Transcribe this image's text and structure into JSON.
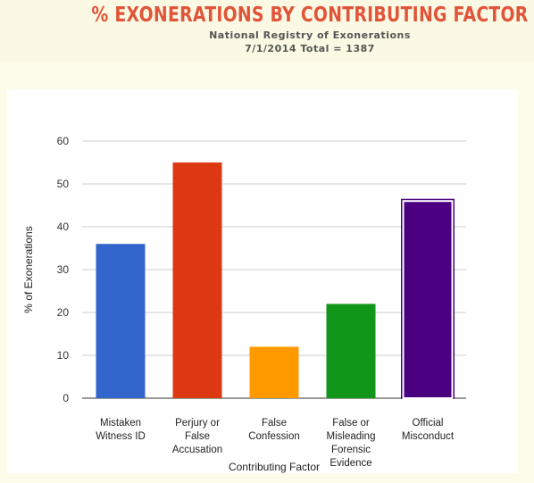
{
  "header": {
    "title": "% EXONERATIONS BY CONTRIBUTING FACTOR",
    "subtitle": "National Registry of Exonerations",
    "subtitle2": "7/1/2014 Total = 1387"
  },
  "chart_data": {
    "type": "bar",
    "categories": [
      [
        "Mistaken",
        "Witness ID"
      ],
      [
        "Perjury or",
        "False",
        "Accusation"
      ],
      [
        "False",
        "Confession"
      ],
      [
        "False or",
        "Misleading",
        "Forensic",
        "Evidence"
      ],
      [
        "Official",
        "Misconduct"
      ]
    ],
    "values": [
      36,
      55,
      12,
      22,
      46
    ],
    "colors": [
      "#3366cc",
      "#dc3912",
      "#ff9900",
      "#109618",
      "#4b0082"
    ],
    "xlabel": "Contributing Factor",
    "ylabel": "% of Exonerations",
    "ylim": [
      0,
      60
    ],
    "yticks": [
      0,
      10,
      20,
      30,
      40,
      50,
      60
    ],
    "grid": true,
    "highlighted_index": 4
  }
}
